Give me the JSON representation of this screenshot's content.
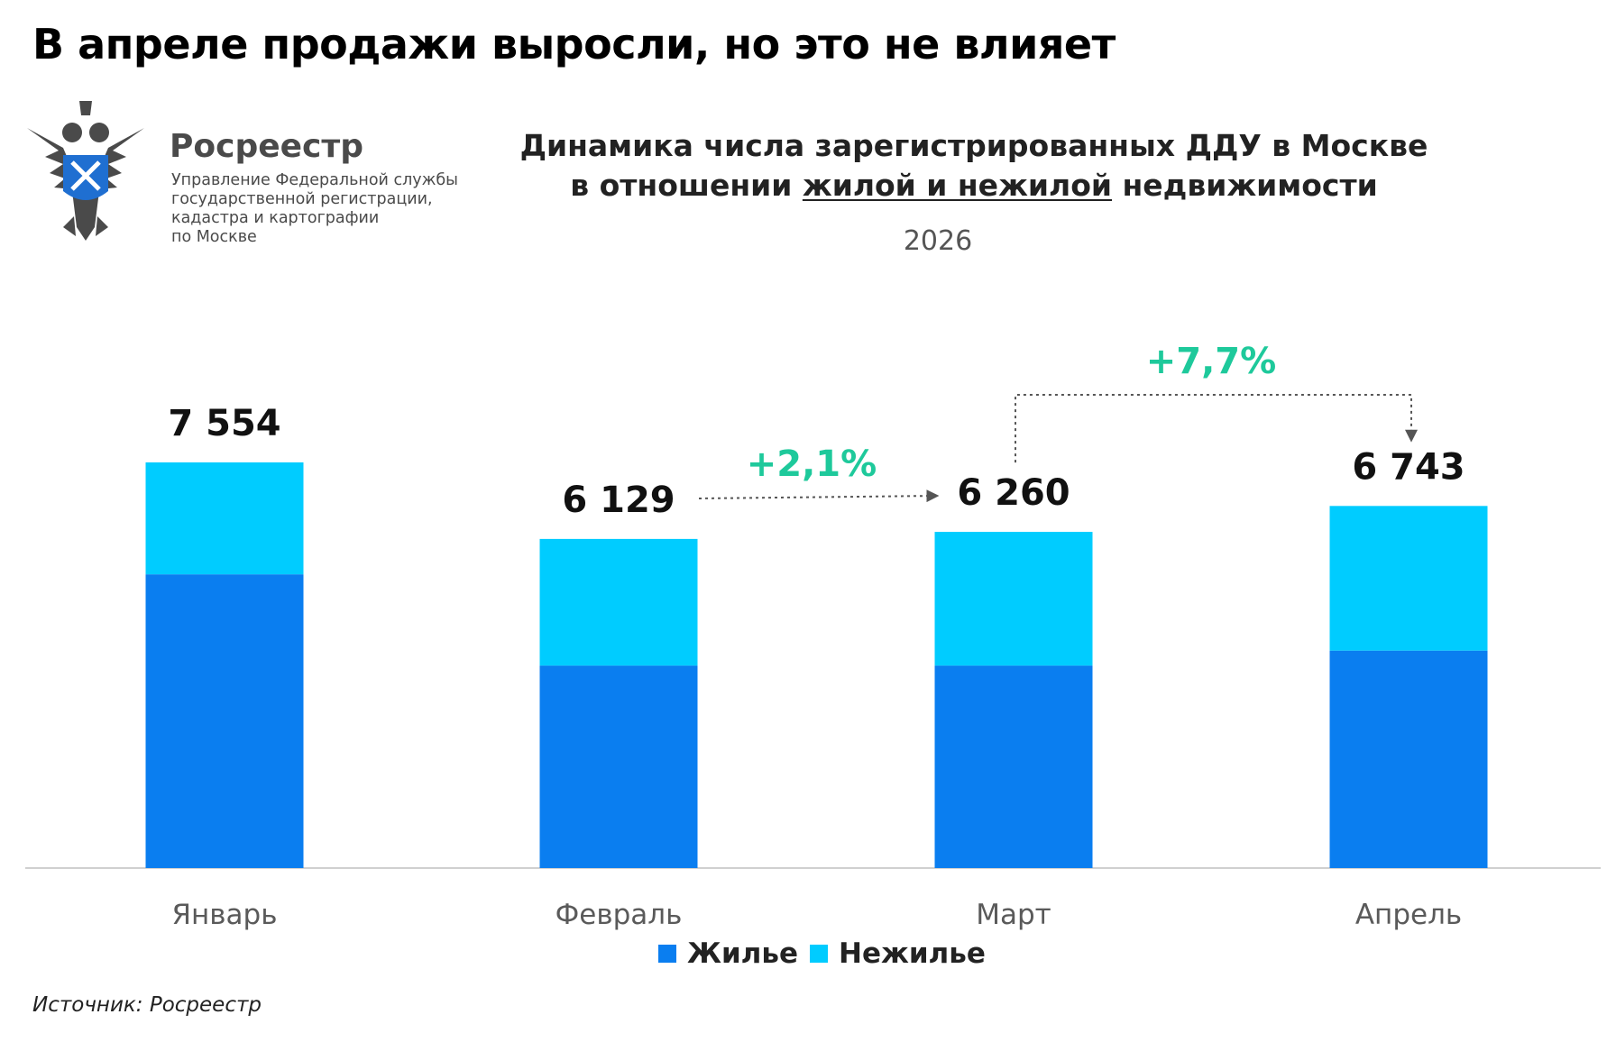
{
  "headline": "В апреле продажи выросли, но это не влияет",
  "logo": {
    "name": "Росреестр",
    "subtitle_lines": [
      "Управление Федеральной службы",
      "государственной регистрации,",
      "кадастра и картографии",
      "по Москве"
    ],
    "icon": "double-headed-eagle-emblem-icon"
  },
  "source": "Источник: Росреестр",
  "colors": {
    "residential": "#0a7ef0",
    "nonresidential": "#00ccff",
    "growth": "#1ec99b",
    "axis": "#d0d0d0"
  },
  "chart_data": {
    "type": "bar",
    "stacked": true,
    "title_line1": "Динамика числа зарегистрированных ДДУ в Москве",
    "title_line2_before": "в отношении ",
    "title_line2_underlined": "жилой и нежилой",
    "title_line2_after": " недвижимости",
    "subtitle": "2026",
    "categories": [
      "Январь",
      "Февраль",
      "Март",
      "Апрель"
    ],
    "totals": [
      7554,
      6129,
      6260,
      6743
    ],
    "total_labels": [
      "7 554",
      "6 129",
      "6 260",
      "6 743"
    ],
    "series": [
      {
        "name": "Жилье",
        "values": [
          5470,
          3770,
          3770,
          4050
        ]
      },
      {
        "name": "Нежилье",
        "values": [
          2084,
          2359,
          2490,
          2693
        ]
      }
    ],
    "ylim": [
      0,
      8000
    ],
    "grid": false,
    "legend_position": "bottom-center",
    "annotations": [
      {
        "text": "+2,1%",
        "from": "Февраль",
        "to": "Март"
      },
      {
        "text": "+7,7%",
        "from": "Март",
        "to": "Апрель"
      }
    ]
  }
}
